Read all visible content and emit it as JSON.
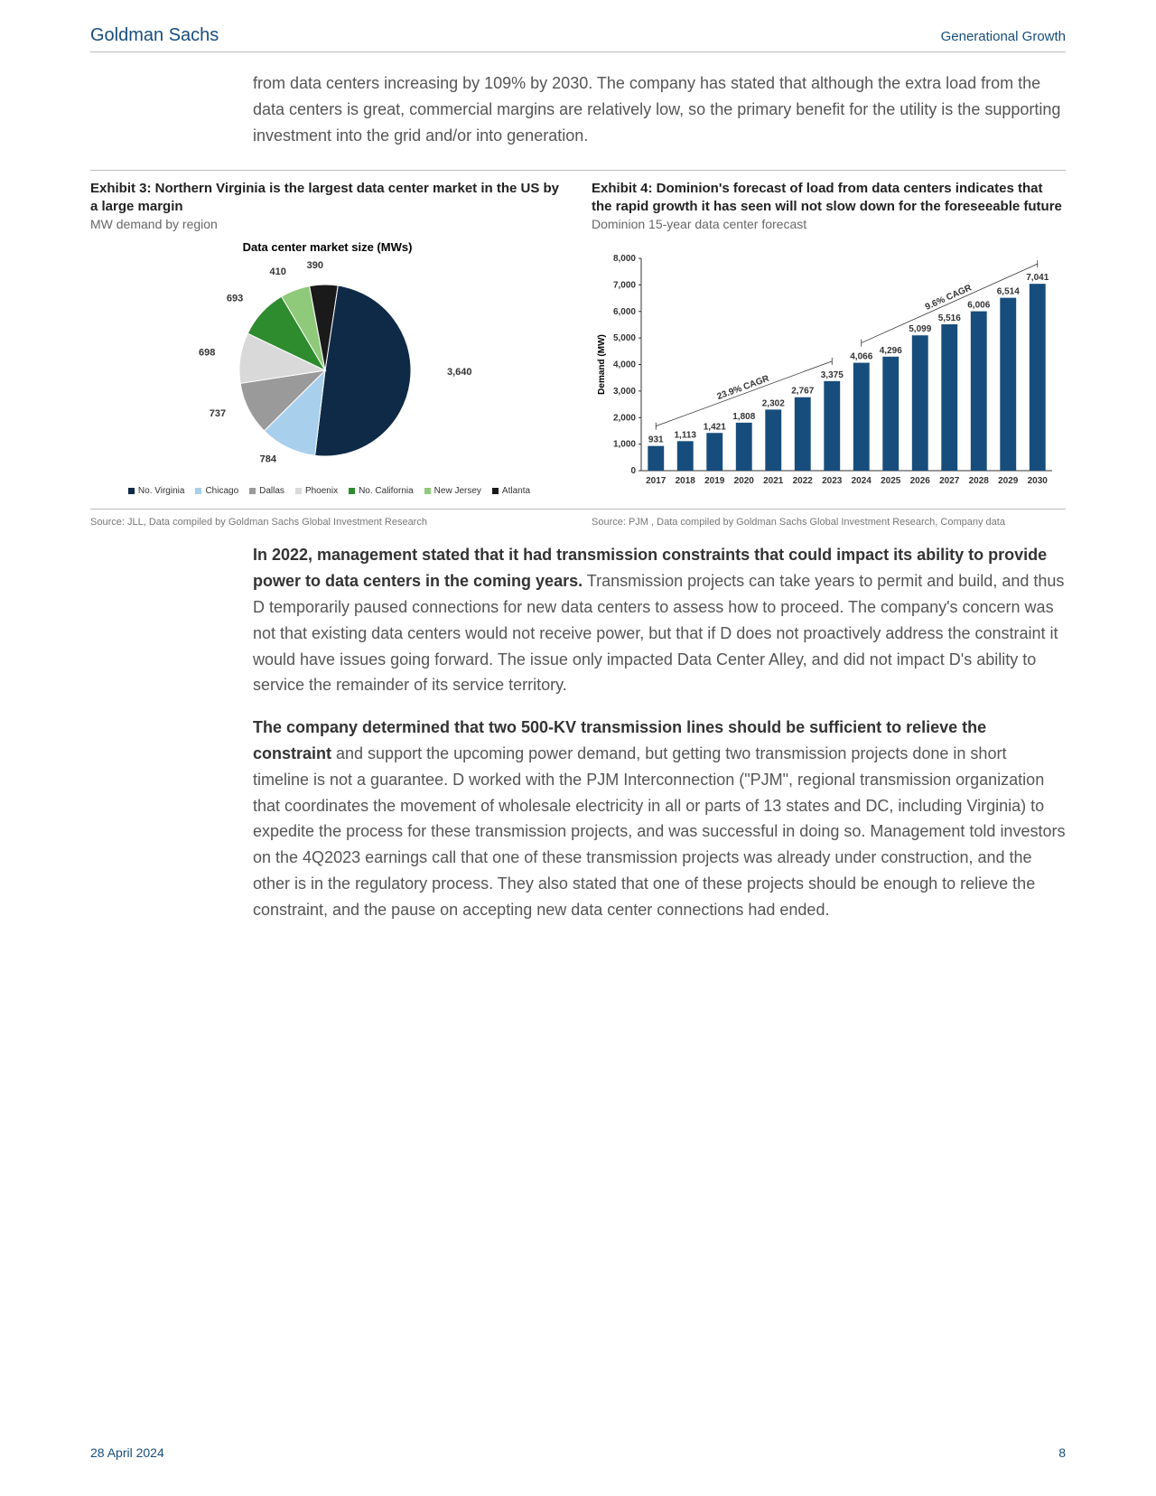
{
  "header": {
    "brand": "Goldman Sachs",
    "report": "Generational Growth"
  },
  "intro": "from data centers increasing by 109% by 2030. The company has stated that although the extra load from the data centers is great, commercial margins are relatively low, so the primary benefit for the utility is the supporting investment into the grid and/or into generation.",
  "exhibit3": {
    "title": "Exhibit 3: Northern Virginia is the largest data center market in the US by a large margin",
    "sub": "MW demand by region",
    "chart_title": "Data center market size (MWs)",
    "type": "pie",
    "segments": [
      {
        "label": "No. Virginia",
        "value": 3640,
        "color": "#0e2a47"
      },
      {
        "label": "Chicago",
        "value": 784,
        "color": "#a8cfec"
      },
      {
        "label": "Dallas",
        "value": 737,
        "color": "#9a9a9a"
      },
      {
        "label": "Phoenix",
        "value": 698,
        "color": "#d9d9d9"
      },
      {
        "label": "No. California",
        "value": 693,
        "color": "#2e8b2e"
      },
      {
        "label": "New Jersey",
        "value": 410,
        "color": "#8fc97a"
      },
      {
        "label": "Atlanta",
        "value": 390,
        "color": "#1a1a1a"
      }
    ],
    "label_fontsize": 11,
    "label_fontweight": "bold",
    "source": "Source: JLL, Data compiled by Goldman Sachs Global Investment Research"
  },
  "exhibit4": {
    "title": "Exhibit 4: Dominion's forecast of load from data centers indicates that the rapid growth it has seen will not slow down for the foreseeable future",
    "sub": "Dominion 15-year data center forecast",
    "type": "bar",
    "ylabel": "Demand (MW)",
    "years": [
      "2017",
      "2018",
      "2019",
      "2020",
      "2021",
      "2022",
      "2023",
      "2024",
      "2025",
      "2026",
      "2027",
      "2028",
      "2029",
      "2030"
    ],
    "values": [
      931,
      1113,
      1421,
      1808,
      2302,
      2767,
      3375,
      4066,
      4296,
      5099,
      5516,
      6006,
      6514,
      7041
    ],
    "bar_color": "#174d7c",
    "ylim": [
      0,
      8000
    ],
    "ytick_step": 1000,
    "cagr1": {
      "label": "23.9% CAGR",
      "from": 0,
      "to": 6
    },
    "cagr2": {
      "label": "9.6% CAGR",
      "from": 7,
      "to": 13
    },
    "axis_fontsize": 10,
    "value_fontsize": 10,
    "source": "Source: PJM , Data compiled by Goldman Sachs Global Investment Research, Company data"
  },
  "body": {
    "p1_strong": "In 2022, management stated that it had transmission constraints that could impact its ability to provide power to data centers in the coming years.",
    "p1_rest": " Transmission projects can take years to permit and build, and thus D temporarily paused connections for new data centers to assess how to proceed. The company's concern was not that existing data centers would not receive power, but that if D does not proactively address the constraint it would have issues going forward. The issue only impacted Data Center Alley, and did not impact D's ability to service the remainder of its service territory.",
    "p2_strong": "The company determined that two 500-KV transmission lines should be sufficient to relieve the constraint",
    "p2_rest": " and support the upcoming power demand, but getting two transmission projects done in short timeline is not a guarantee. D worked with the PJM Interconnection (\"PJM\", regional transmission organization that coordinates the movement of wholesale electricity in all or parts of 13 states and DC, including Virginia) to expedite the process for these transmission projects, and was successful in doing so. Management told investors on the 4Q2023 earnings call that one of these transmission projects was already under construction, and the other is in the regulatory process. They also stated that one of these projects should be enough to relieve the constraint, and the pause on accepting new data center connections had ended."
  },
  "footer": {
    "date": "28 April 2024",
    "page": "8"
  }
}
